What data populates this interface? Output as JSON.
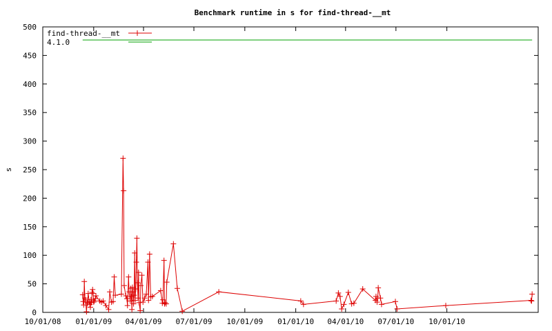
{
  "chart_data": {
    "type": "line",
    "title": "Benchmark runtime in s for find-thread-__mt",
    "xlabel": "",
    "ylabel": "s",
    "ylim": [
      0,
      500
    ],
    "yticks": [
      "0",
      "50",
      "100",
      "150",
      "200",
      "250",
      "300",
      "350",
      "400",
      "450",
      "500"
    ],
    "xlim": [
      "2008-10-01",
      "2011-03-15"
    ],
    "xticks": [
      {
        "date": "2008-10-01",
        "label": "10/01/08"
      },
      {
        "date": "2009-01-01",
        "label": "01/01/09"
      },
      {
        "date": "2009-04-01",
        "label": "04/01/09"
      },
      {
        "date": "2009-07-01",
        "label": "07/01/09"
      },
      {
        "date": "2009-10-01",
        "label": "10/01/09"
      },
      {
        "date": "2010-01-01",
        "label": "01/01/10"
      },
      {
        "date": "2010-04-01",
        "label": "04/01/10"
      },
      {
        "date": "2010-07-01",
        "label": "07/01/10"
      },
      {
        "date": "2010-10-01",
        "label": "10/01/10"
      }
    ],
    "grid": false,
    "legend_position": "top-left",
    "series": [
      {
        "name": "find-thread-__mt",
        "color": "#dd0000",
        "marker": "plus",
        "points": [
          [
            "2008-12-12",
            31
          ],
          [
            "2008-12-13",
            19
          ],
          [
            "2008-12-14",
            13
          ],
          [
            "2008-12-15",
            54
          ],
          [
            "2008-12-16",
            25
          ],
          [
            "2008-12-17",
            22
          ],
          [
            "2008-12-19",
            1
          ],
          [
            "2008-12-20",
            18
          ],
          [
            "2008-12-21",
            16
          ],
          [
            "2008-12-22",
            33
          ],
          [
            "2008-12-24",
            19
          ],
          [
            "2008-12-25",
            14
          ],
          [
            "2008-12-26",
            9
          ],
          [
            "2008-12-27",
            22
          ],
          [
            "2008-12-28",
            17
          ],
          [
            "2008-12-29",
            35
          ],
          [
            "2008-12-30",
            40
          ],
          [
            "2008-12-31",
            33
          ],
          [
            "2009-01-01",
            18
          ],
          [
            "2009-01-02",
            20
          ],
          [
            "2009-01-04",
            24
          ],
          [
            "2009-01-05",
            29
          ],
          [
            "2009-01-12",
            20
          ],
          [
            "2009-01-15",
            18
          ],
          [
            "2009-01-18",
            20
          ],
          [
            "2009-01-23",
            12
          ],
          [
            "2009-01-28",
            5
          ],
          [
            "2009-01-30",
            36
          ],
          [
            "2009-02-02",
            18
          ],
          [
            "2009-02-05",
            19
          ],
          [
            "2009-02-07",
            62
          ],
          [
            "2009-02-09",
            30
          ],
          [
            "2009-02-20",
            32
          ],
          [
            "2009-02-23",
            270
          ],
          [
            "2009-02-24",
            213
          ],
          [
            "2009-02-25",
            47
          ],
          [
            "2009-02-28",
            29
          ],
          [
            "2009-03-02",
            24
          ],
          [
            "2009-03-03",
            12
          ],
          [
            "2009-03-05",
            62
          ],
          [
            "2009-03-06",
            36
          ],
          [
            "2009-03-08",
            20
          ],
          [
            "2009-03-09",
            42
          ],
          [
            "2009-03-10",
            28
          ],
          [
            "2009-03-11",
            5
          ],
          [
            "2009-03-12",
            44
          ],
          [
            "2009-03-13",
            36
          ],
          [
            "2009-03-14",
            15
          ],
          [
            "2009-03-15",
            30
          ],
          [
            "2009-03-16",
            104
          ],
          [
            "2009-03-17",
            21
          ],
          [
            "2009-03-18",
            41
          ],
          [
            "2009-03-19",
            88
          ],
          [
            "2009-03-20",
            130
          ],
          [
            "2009-03-21",
            52
          ],
          [
            "2009-03-22",
            25
          ],
          [
            "2009-03-23",
            70
          ],
          [
            "2009-03-24",
            17
          ],
          [
            "2009-03-26",
            3
          ],
          [
            "2009-03-27",
            47
          ],
          [
            "2009-03-29",
            65
          ],
          [
            "2009-03-31",
            18
          ],
          [
            "2009-04-03",
            25
          ],
          [
            "2009-04-06",
            32
          ],
          [
            "2009-04-09",
            88
          ],
          [
            "2009-04-10",
            21
          ],
          [
            "2009-04-12",
            102
          ],
          [
            "2009-04-14",
            27
          ],
          [
            "2009-04-17",
            28
          ],
          [
            "2009-05-02",
            38
          ],
          [
            "2009-05-05",
            16
          ],
          [
            "2009-05-06",
            22
          ],
          [
            "2009-05-08",
            91
          ],
          [
            "2009-05-09",
            15
          ],
          [
            "2009-05-10",
            17
          ],
          [
            "2009-05-12",
            15
          ],
          [
            "2009-05-13",
            53
          ],
          [
            "2009-05-25",
            120
          ],
          [
            "2009-06-01",
            42
          ],
          [
            "2009-06-10",
            2
          ],
          [
            "2009-08-15",
            36
          ],
          [
            "2010-01-10",
            20
          ],
          [
            "2010-01-15",
            14
          ],
          [
            "2010-03-15",
            20
          ],
          [
            "2010-03-19",
            34
          ],
          [
            "2010-03-22",
            28
          ],
          [
            "2010-03-25",
            6
          ],
          [
            "2010-03-29",
            14
          ],
          [
            "2010-04-06",
            35
          ],
          [
            "2010-04-12",
            15
          ],
          [
            "2010-04-16",
            16
          ],
          [
            "2010-05-02",
            41
          ],
          [
            "2010-05-25",
            21
          ],
          [
            "2010-05-26",
            28
          ],
          [
            "2010-05-28",
            18
          ],
          [
            "2010-05-29",
            25
          ],
          [
            "2010-05-30",
            43
          ],
          [
            "2010-06-03",
            25
          ],
          [
            "2010-06-05",
            14
          ],
          [
            "2010-06-30",
            19
          ],
          [
            "2010-07-03",
            6
          ],
          [
            "2010-09-29",
            12
          ],
          [
            "2011-03-02",
            21
          ],
          [
            "2011-03-03",
            20
          ],
          [
            "2011-03-04",
            32
          ]
        ]
      },
      {
        "name": "4.1.0",
        "color": "#00a000",
        "marker": "none",
        "points": [
          [
            "2008-12-12",
            477
          ],
          [
            "2011-03-04",
            477
          ]
        ]
      }
    ]
  }
}
